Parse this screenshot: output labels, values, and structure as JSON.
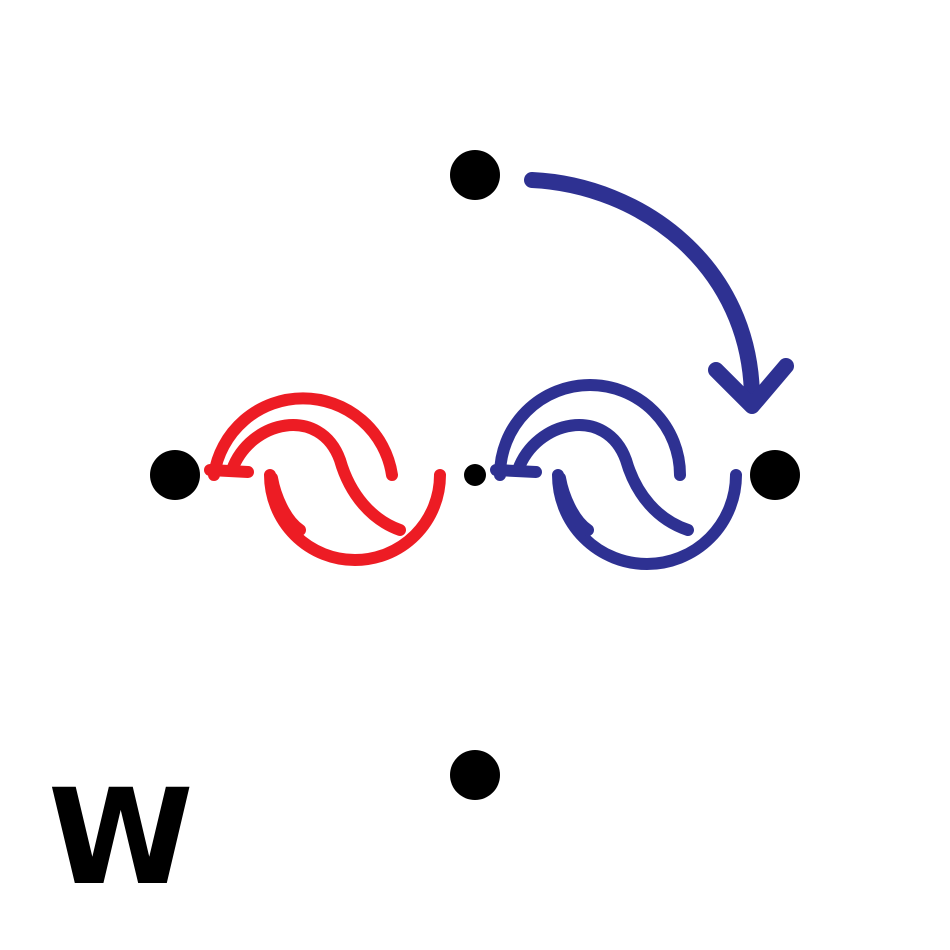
{
  "label": "W",
  "colors": {
    "background": "#ffffff",
    "dot": "#000000",
    "red_wave": "#ed1c24",
    "blue_wave": "#2e3192",
    "arrow": "#2e3192"
  },
  "elements": {
    "dots": [
      "top",
      "left",
      "center",
      "right",
      "bottom"
    ],
    "waves": [
      "red-wave",
      "blue-wave"
    ],
    "arrow": "clockwise-arrow"
  }
}
